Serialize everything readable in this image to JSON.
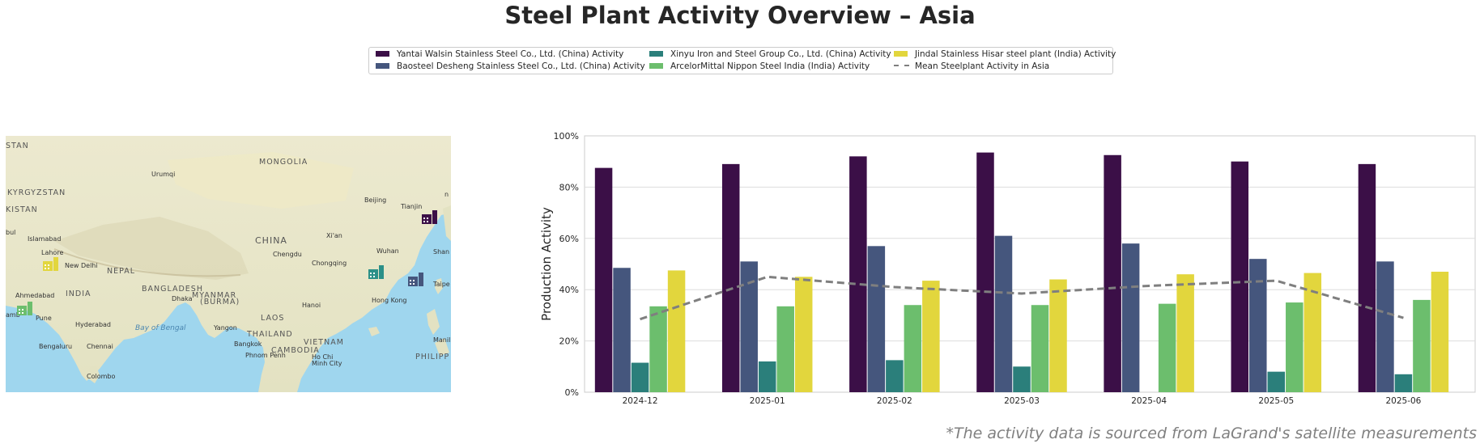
{
  "page": {
    "title": "Steel Plant Activity Overview – Asia",
    "footnote": "*The activity data is sourced from LaGrand's satellite measurements"
  },
  "legend": {
    "items": [
      {
        "label": "Yantai Walsin Stainless Steel Co., Ltd. (China) Activity",
        "color": "#3b0f47",
        "kind": "bar"
      },
      {
        "label": "Baosteel Desheng Stainless Steel Co., Ltd. (China) Activity",
        "color": "#45567d",
        "kind": "bar"
      },
      {
        "label": "Xinyu Iron and Steel Group Co., Ltd. (China) Activity",
        "color": "#2b7f7b",
        "kind": "bar"
      },
      {
        "label": "ArcelorMittal Nippon Steel India (India) Activity",
        "color": "#6cbe6d",
        "kind": "bar"
      },
      {
        "label": "Jindal Stainless Hisar steel plant (India) Activity",
        "color": "#e2d63d",
        "kind": "bar"
      },
      {
        "label": "Mean Steelplant Activity in Asia",
        "color": "#7f7f7f",
        "kind": "dashed-line"
      }
    ]
  },
  "map": {
    "labels": {
      "mongolia": "MONGOLIA",
      "china": "CHINA",
      "kyrgyzstan": "KYRGYZSTAN",
      "stan": "STAN",
      "kistan": "KISTAN",
      "nepal": "NEPAL",
      "india": "INDIA",
      "bangladesh": "BANGLADESH",
      "myanmar": "MYANMAR",
      "burma": "(BURMA)",
      "thailand": "THAILAND",
      "laos": "LAOS",
      "vietnam": "VIETNAM",
      "cambodia": "CAMBODIA",
      "philipp": "PHILIPP",
      "bay_of_bengal": "Bay of Bengal",
      "urumqi": "Urumqi",
      "beijing": "Beijing",
      "tianjin": "Tianjin",
      "xian": "Xi'an",
      "chengdu": "Chengdu",
      "chongqing": "Chongqing",
      "wuhan": "Wuhan",
      "shan": "Shan",
      "taipe": "Taipe",
      "islamabad": "Islamabad",
      "lahore": "Lahore",
      "new_delhi": "New Delhi",
      "ahmedabad": "Ahmedabad",
      "pune": "Pune",
      "hyderabad": "Hyderabad",
      "bengaluru": "Bengaluru",
      "chennai": "Chennai",
      "colombo": "Colombo",
      "dhaka": "Dhaka",
      "yangon": "Yangon",
      "hanoi": "Hanoi",
      "hong_kong": "Hong Kong",
      "bangkok": "Bangkok",
      "phnom_penh": "Phnom Penh",
      "ho_chi": "Ho Chi",
      "minh_city": "Minh City",
      "manila": "Manil",
      "bul": "bul",
      "n": "n",
      "amb": "amb"
    },
    "plant_markers": [
      {
        "name": "Yantai Walsin Stainless Steel Co., Ltd. (China)",
        "color": "#3b0f47"
      },
      {
        "name": "Baosteel Desheng Stainless Steel Co., Ltd. (China)",
        "color": "#45567d"
      },
      {
        "name": "Xinyu Iron and Steel Group Co., Ltd. (China)",
        "color": "#2b9088"
      },
      {
        "name": "ArcelorMittal Nippon Steel India (India)",
        "color": "#6cbe6d"
      },
      {
        "name": "Jindal Stainless Hisar steel plant (India)",
        "color": "#e2d63d"
      }
    ]
  },
  "chart_data": {
    "type": "bar",
    "title": "",
    "xlabel": "",
    "ylabel": "Production Activity",
    "ylim": [
      0,
      100
    ],
    "y_ticks": [
      "0%",
      "20%",
      "40%",
      "60%",
      "80%",
      "100%"
    ],
    "grid": "horizontal",
    "legend_position": "top-center",
    "categories": [
      "2024-12",
      "2025-01",
      "2025-02",
      "2025-03",
      "2025-04",
      "2025-05",
      "2025-06"
    ],
    "series": [
      {
        "name": "Yantai Walsin Stainless Steel Co., Ltd. (China) Activity",
        "color": "#3b0f47",
        "values": [
          87.5,
          89,
          92,
          93.5,
          92.5,
          90,
          89
        ]
      },
      {
        "name": "Baosteel Desheng Stainless Steel Co., Ltd. (China) Activity",
        "color": "#45567d",
        "values": [
          48.5,
          51,
          57,
          61,
          58,
          52,
          51
        ]
      },
      {
        "name": "Xinyu Iron and Steel Group Co., Ltd. (China) Activity",
        "color": "#2b7f7b",
        "values": [
          11.5,
          12,
          12.5,
          10,
          null,
          8,
          7
        ]
      },
      {
        "name": "ArcelorMittal Nippon Steel India (India) Activity",
        "color": "#6cbe6d",
        "values": [
          33.5,
          33.5,
          34,
          34,
          34.5,
          35,
          36
        ]
      },
      {
        "name": "Jindal Stainless Hisar steel plant (India) Activity",
        "color": "#e2d63d",
        "values": [
          47.5,
          45,
          43.5,
          44,
          46,
          46.5,
          47
        ]
      }
    ],
    "mean_line": {
      "name": "Mean Steelplant Activity in Asia",
      "color": "#7f7f7f",
      "values": [
        28.5,
        45,
        41,
        38.5,
        41.5,
        43.5,
        29
      ]
    }
  }
}
